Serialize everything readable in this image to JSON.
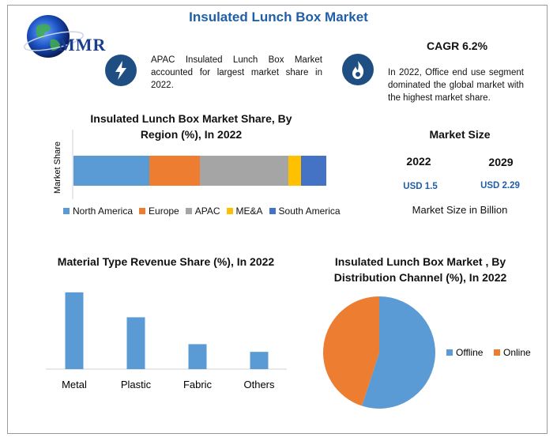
{
  "header": {
    "title": "Insulated Lunch Box Market",
    "logo_text": "MMR"
  },
  "info": {
    "apac_text": "APAC Insulated Lunch Box Market accounted for largest market share in 2022.",
    "cagr": "CAGR 6.2%",
    "office_text": "In 2022, Office end use segment dominated the global market with the highest market share.",
    "left_icon": "lightning-icon",
    "right_icon": "flame-icon"
  },
  "market_size": {
    "title": "Market Size",
    "years": [
      "2022",
      "2029"
    ],
    "values": [
      "USD 1.5",
      "USD 2.29"
    ],
    "note": "Market Size in Billion"
  },
  "colors": {
    "blue": "#5b9bd5",
    "orange": "#ed7d31",
    "gray": "#a5a5a5",
    "yellow": "#ffc000",
    "darkblue": "#4472c4",
    "icon_bg": "#1f4f82",
    "title_blue": "#1f5fa8"
  },
  "chart_data": [
    {
      "type": "bar",
      "orientation": "horizontal-stacked",
      "title": "Insulated Lunch Box Market Share, By Region (%), In 2022",
      "ylabel": "Market Share",
      "legend_position": "bottom",
      "xlim": [
        0,
        100
      ],
      "series": [
        {
          "name": "North America",
          "values": [
            30
          ]
        },
        {
          "name": "Europe",
          "values": [
            20
          ]
        },
        {
          "name": "APAC",
          "values": [
            35
          ]
        },
        {
          "name": "ME&A",
          "values": [
            5
          ]
        },
        {
          "name": "South America",
          "values": [
            10
          ]
        }
      ]
    },
    {
      "type": "bar",
      "title": "Material Type Revenue Share (%), In 2022",
      "categories": [
        "Metal",
        "Plastic",
        "Fabric",
        "Others"
      ],
      "values": [
        40,
        27,
        13,
        9
      ],
      "ylim": [
        0,
        42
      ]
    },
    {
      "type": "pie",
      "title": "Insulated Lunch Box Market , By Distribution Channel (%), In 2022",
      "legend_position": "right",
      "labels": [
        "Offline",
        "Online"
      ],
      "values": [
        55,
        45
      ]
    }
  ]
}
